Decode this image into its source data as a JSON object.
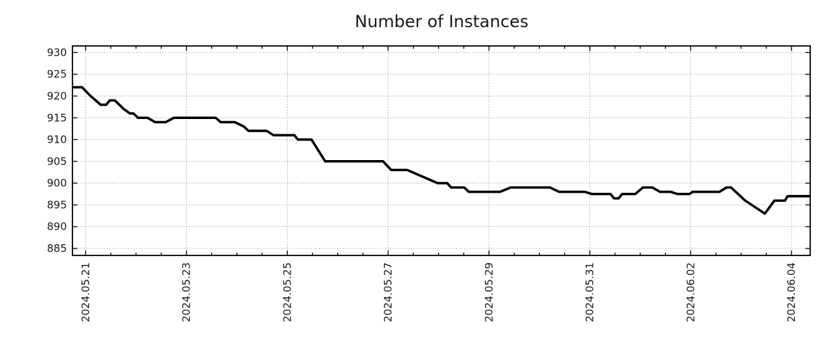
{
  "chart_data": {
    "type": "line",
    "title": "Number of Instances",
    "xlabel": "",
    "ylabel": "",
    "legend": "none",
    "grid": "dotted, both axes, at major ticks",
    "x_axis": {
      "epoch_label": "2024.05.21",
      "tick_labels": [
        "2024.05.21",
        "2024.05.23",
        "2024.05.25",
        "2024.05.27",
        "2024.05.29",
        "2024.05.31",
        "2024.06.02",
        "2024.06.04"
      ],
      "tick_day_offsets": [
        0,
        2,
        4,
        6,
        8,
        10,
        12,
        14
      ],
      "minor_tick_interval_days": 0.5,
      "xlim_days": [
        -0.26,
        14.37
      ]
    },
    "y_axis": {
      "ticks": [
        885,
        890,
        895,
        900,
        905,
        910,
        915,
        920,
        925,
        930
      ],
      "ylim": [
        883.4,
        931.5
      ]
    },
    "series": [
      {
        "name": "instances",
        "color": "#000000",
        "points_day_value": [
          [
            -0.26,
            922
          ],
          [
            -0.07,
            922
          ],
          [
            0.1,
            920
          ],
          [
            0.3,
            918
          ],
          [
            0.41,
            918
          ],
          [
            0.48,
            919
          ],
          [
            0.58,
            919
          ],
          [
            0.76,
            917
          ],
          [
            0.88,
            916
          ],
          [
            0.95,
            916
          ],
          [
            1.04,
            915
          ],
          [
            1.23,
            915
          ],
          [
            1.38,
            914
          ],
          [
            1.59,
            914
          ],
          [
            1.75,
            915
          ],
          [
            2.58,
            915
          ],
          [
            2.68,
            914
          ],
          [
            2.96,
            914
          ],
          [
            3.14,
            913
          ],
          [
            3.23,
            912
          ],
          [
            3.59,
            912
          ],
          [
            3.73,
            911
          ],
          [
            4.14,
            911
          ],
          [
            4.21,
            910
          ],
          [
            4.48,
            910
          ],
          [
            4.75,
            905
          ],
          [
            5.9,
            905
          ],
          [
            6.06,
            903
          ],
          [
            6.38,
            903
          ],
          [
            6.98,
            900
          ],
          [
            7.17,
            900
          ],
          [
            7.25,
            899
          ],
          [
            7.51,
            899
          ],
          [
            7.6,
            898
          ],
          [
            8.22,
            898
          ],
          [
            8.43,
            899
          ],
          [
            9.21,
            899
          ],
          [
            9.39,
            898
          ],
          [
            9.9,
            898
          ],
          [
            10.04,
            897.5
          ],
          [
            10.41,
            897.5
          ],
          [
            10.48,
            896.5
          ],
          [
            10.57,
            896.5
          ],
          [
            10.64,
            897.5
          ],
          [
            10.9,
            897.5
          ],
          [
            11.05,
            899
          ],
          [
            11.24,
            899
          ],
          [
            11.39,
            898
          ],
          [
            11.6,
            898
          ],
          [
            11.74,
            897.5
          ],
          [
            11.97,
            897.5
          ],
          [
            12.04,
            898
          ],
          [
            12.57,
            898
          ],
          [
            12.71,
            899
          ],
          [
            12.8,
            899
          ],
          [
            13.08,
            896
          ],
          [
            13.47,
            893
          ],
          [
            13.66,
            896
          ],
          [
            13.87,
            896
          ],
          [
            13.92,
            897
          ],
          [
            14.36,
            897
          ]
        ]
      }
    ],
    "colors": {
      "line": "#000000",
      "grid": "#a8a8a8",
      "axis": "#000000",
      "background": "#ffffff",
      "text": "#1a1a1a"
    }
  }
}
